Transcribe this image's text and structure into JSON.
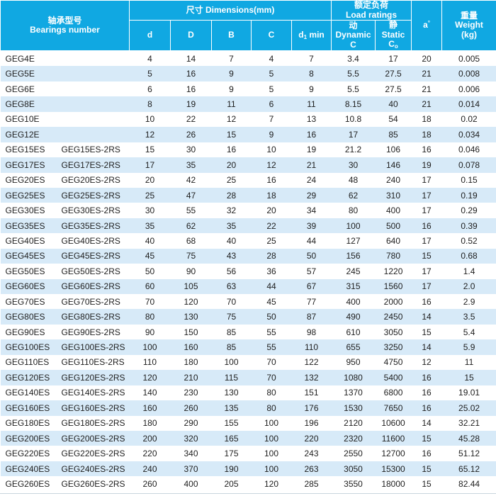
{
  "colors": {
    "header_bg": "#10a8e2",
    "header_text": "#ffffff",
    "stripe": "#d7eaf8",
    "text": "#1e1e1e"
  },
  "header": {
    "bearings_zh": "轴承型号",
    "bearings_en": "Bearings number",
    "dimensions_zh": "尺寸",
    "dimensions_en": "Dimensions(mm)",
    "load_zh": "额定负荷",
    "load_en": "Load ratings",
    "col_d": "d",
    "col_D": "D",
    "col_B": "B",
    "col_C": "C",
    "col_d1_base": "d",
    "col_d1_sub": "1",
    "col_d1_rest": " min",
    "dyn_zh": "动",
    "dyn_en": "Dynamic",
    "dyn_sym": "C",
    "sta_zh": "静",
    "sta_en": "Static",
    "sta_sym_base": "C",
    "sta_sym_sub": "o",
    "a_base": "a",
    "a_sup": "°",
    "weight_zh": "重量",
    "weight_en": "Weight",
    "weight_unit": "(kg)"
  },
  "rows": [
    [
      "GEG4E",
      "",
      "4",
      "14",
      "7",
      "4",
      "7",
      "3.4",
      "17",
      "20",
      "0.005"
    ],
    [
      "GEG5E",
      "",
      "5",
      "16",
      "9",
      "5",
      "8",
      "5.5",
      "27.5",
      "21",
      "0.008"
    ],
    [
      "GEG6E",
      "",
      "6",
      "16",
      "9",
      "5",
      "9",
      "5.5",
      "27.5",
      "21",
      "0.006"
    ],
    [
      "GEG8E",
      "",
      "8",
      "19",
      "11",
      "6",
      "11",
      "8.15",
      "40",
      "21",
      "0.014"
    ],
    [
      "GEG10E",
      "",
      "10",
      "22",
      "12",
      "7",
      "13",
      "10.8",
      "54",
      "18",
      "0.02"
    ],
    [
      "GEG12E",
      "",
      "12",
      "26",
      "15",
      "9",
      "16",
      "17",
      "85",
      "18",
      "0.034"
    ],
    [
      "GEG15ES",
      "GEG15ES-2RS",
      "15",
      "30",
      "16",
      "10",
      "19",
      "21.2",
      "106",
      "16",
      "0.046"
    ],
    [
      "GEG17ES",
      "GEG17ES-2RS",
      "17",
      "35",
      "20",
      "12",
      "21",
      "30",
      "146",
      "19",
      "0.078"
    ],
    [
      "GEG20ES",
      "GEG20ES-2RS",
      "20",
      "42",
      "25",
      "16",
      "24",
      "48",
      "240",
      "17",
      "0.15"
    ],
    [
      "GEG25ES",
      "GEG25ES-2RS",
      "25",
      "47",
      "28",
      "18",
      "29",
      "62",
      "310",
      "17",
      "0.19"
    ],
    [
      "GEG30ES",
      "GEG30ES-2RS",
      "30",
      "55",
      "32",
      "20",
      "34",
      "80",
      "400",
      "17",
      "0.29"
    ],
    [
      "GEG35ES",
      "GEG35ES-2RS",
      "35",
      "62",
      "35",
      "22",
      "39",
      "100",
      "500",
      "16",
      "0.39"
    ],
    [
      "GEG40ES",
      "GEG40ES-2RS",
      "40",
      "68",
      "40",
      "25",
      "44",
      "127",
      "640",
      "17",
      "0.52"
    ],
    [
      "GEG45ES",
      "GEG45ES-2RS",
      "45",
      "75",
      "43",
      "28",
      "50",
      "156",
      "780",
      "15",
      "0.68"
    ],
    [
      "GEG50ES",
      "GEG50ES-2RS",
      "50",
      "90",
      "56",
      "36",
      "57",
      "245",
      "1220",
      "17",
      "1.4"
    ],
    [
      "GEG60ES",
      "GEG60ES-2RS",
      "60",
      "105",
      "63",
      "44",
      "67",
      "315",
      "1560",
      "17",
      "2.0"
    ],
    [
      "GEG70ES",
      "GEG70ES-2RS",
      "70",
      "120",
      "70",
      "45",
      "77",
      "400",
      "2000",
      "16",
      "2.9"
    ],
    [
      "GEG80ES",
      "GEG80ES-2RS",
      "80",
      "130",
      "75",
      "50",
      "87",
      "490",
      "2450",
      "14",
      "3.5"
    ],
    [
      "GEG90ES",
      "GEG90ES-2RS",
      "90",
      "150",
      "85",
      "55",
      "98",
      "610",
      "3050",
      "15",
      "5.4"
    ],
    [
      "GEG100ES",
      "GEG100ES-2RS",
      "100",
      "160",
      "85",
      "55",
      "110",
      "655",
      "3250",
      "14",
      "5.9"
    ],
    [
      "GEG110ES",
      "GEG110ES-2RS",
      "110",
      "180",
      "100",
      "70",
      "122",
      "950",
      "4750",
      "12",
      "11"
    ],
    [
      "GEG120ES",
      "GEG120ES-2RS",
      "120",
      "210",
      "115",
      "70",
      "132",
      "1080",
      "5400",
      "16",
      "15"
    ],
    [
      "GEG140ES",
      "GEG140ES-2RS",
      "140",
      "230",
      "130",
      "80",
      "151",
      "1370",
      "6800",
      "16",
      "19.01"
    ],
    [
      "GEG160ES",
      "GEG160ES-2RS",
      "160",
      "260",
      "135",
      "80",
      "176",
      "1530",
      "7650",
      "16",
      "25.02"
    ],
    [
      "GEG180ES",
      "GEG180ES-2RS",
      "180",
      "290",
      "155",
      "100",
      "196",
      "2120",
      "10600",
      "14",
      "32.21"
    ],
    [
      "GEG200ES",
      "GEG200ES-2RS",
      "200",
      "320",
      "165",
      "100",
      "220",
      "2320",
      "11600",
      "15",
      "45.28"
    ],
    [
      "GEG220ES",
      "GEG220ES-2RS",
      "220",
      "340",
      "175",
      "100",
      "243",
      "2550",
      "12700",
      "16",
      "51.12"
    ],
    [
      "GEG240ES",
      "GEG240ES-2RS",
      "240",
      "370",
      "190",
      "100",
      "263",
      "3050",
      "15300",
      "15",
      "65.12"
    ],
    [
      "GEG260ES",
      "GEG260ES-2RS",
      "260",
      "400",
      "205",
      "120",
      "285",
      "3550",
      "18000",
      "15",
      "82.44"
    ]
  ]
}
